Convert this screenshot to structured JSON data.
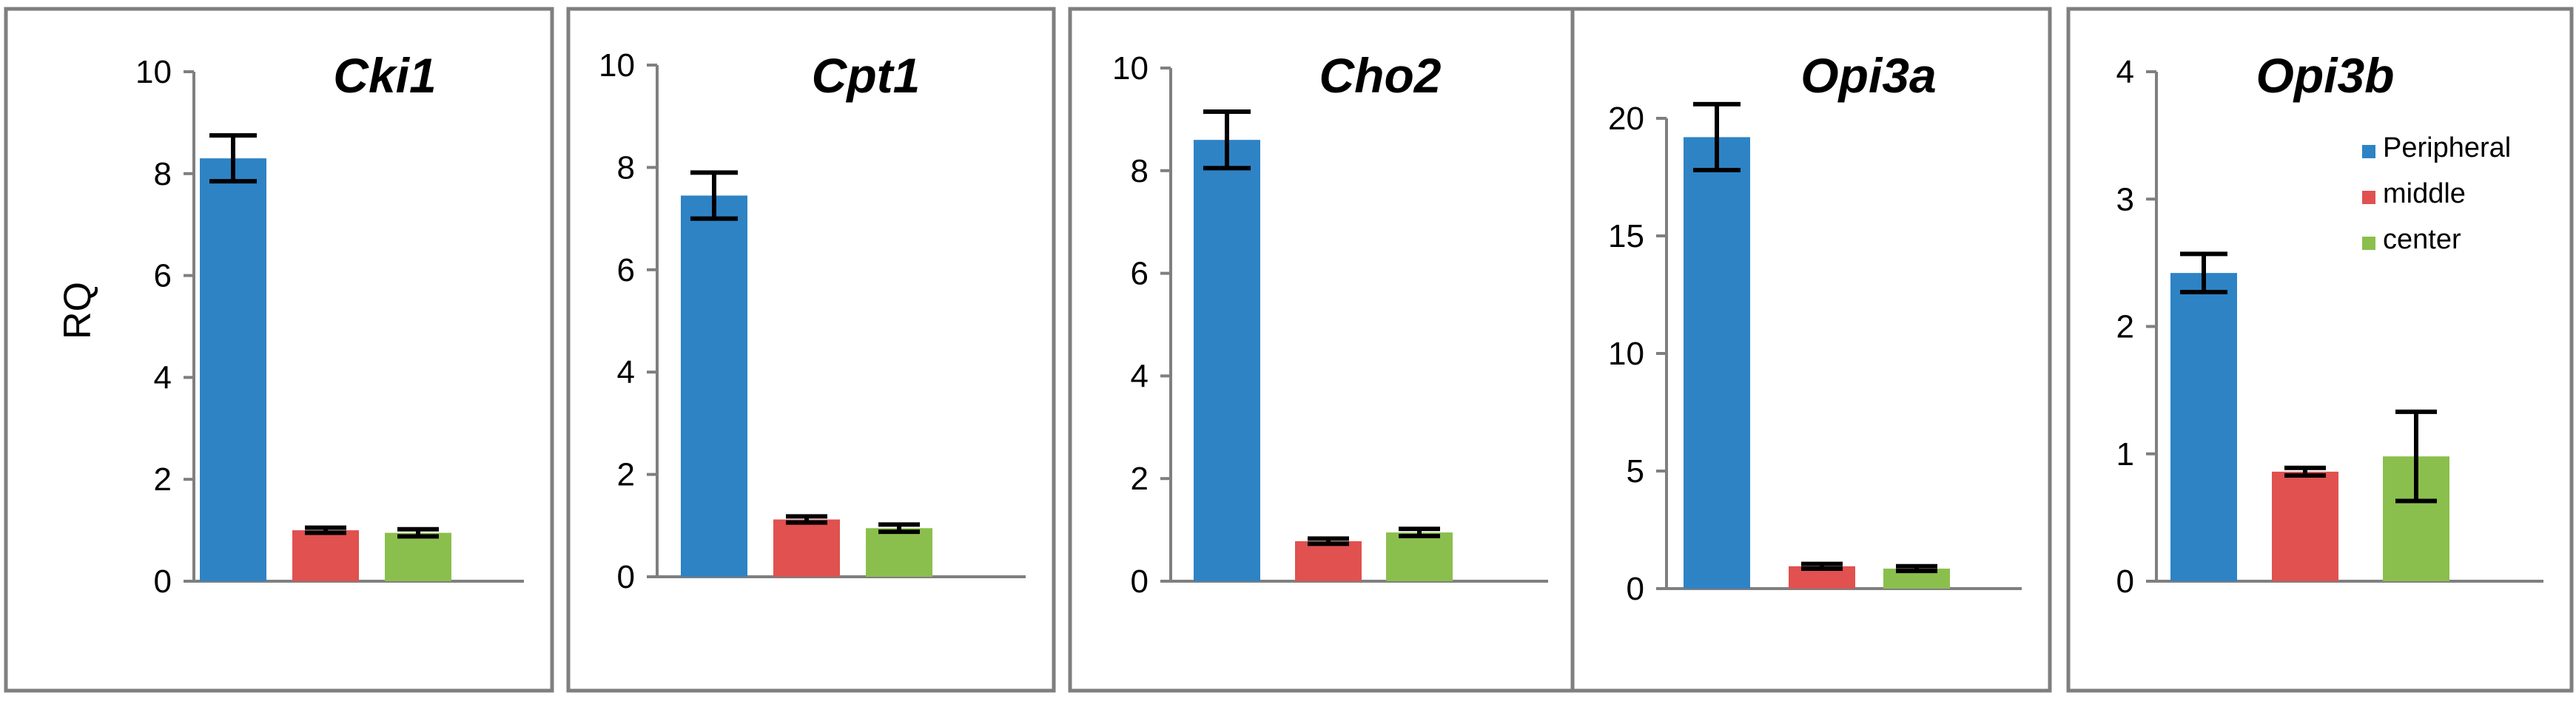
{
  "chart_data": [
    {
      "type": "bar",
      "title": "Cki1",
      "ylabel": "RQ",
      "ylim": [
        0,
        10
      ],
      "yticks": [
        0,
        2,
        4,
        6,
        8,
        10
      ],
      "categories": [
        "Peripheral",
        "middle",
        "center"
      ],
      "values": [
        8.3,
        1.0,
        0.95
      ],
      "errors": [
        0.45,
        0.05,
        0.07
      ]
    },
    {
      "type": "bar",
      "title": "Cpt1",
      "ylabel": "",
      "ylim": [
        0,
        10
      ],
      "yticks": [
        0,
        2,
        4,
        6,
        8,
        10
      ],
      "categories": [
        "Peripheral",
        "middle",
        "center"
      ],
      "values": [
        7.45,
        1.12,
        0.95
      ],
      "errors": [
        0.45,
        0.06,
        0.07
      ]
    },
    {
      "type": "bar",
      "title": "Cho2",
      "ylabel": "",
      "ylim": [
        0,
        10
      ],
      "yticks": [
        0,
        2,
        4,
        6,
        8,
        10
      ],
      "categories": [
        "Peripheral",
        "middle",
        "center"
      ],
      "values": [
        8.6,
        0.78,
        0.95
      ],
      "errors": [
        0.55,
        0.05,
        0.07
      ]
    },
    {
      "type": "bar",
      "title": "Opi3a",
      "ylabel": "",
      "ylim": [
        0,
        22
      ],
      "yticks": [
        0,
        5,
        10,
        15,
        20
      ],
      "categories": [
        "Peripheral",
        "middle",
        "center"
      ],
      "values": [
        19.2,
        0.95,
        0.85
      ],
      "errors": [
        1.4,
        0.1,
        0.1
      ]
    },
    {
      "type": "bar",
      "title": "Opi3b",
      "ylabel": "",
      "ylim": [
        0,
        4
      ],
      "yticks": [
        0,
        1,
        2,
        3,
        4
      ],
      "categories": [
        "Peripheral",
        "middle",
        "center"
      ],
      "values": [
        2.42,
        0.86,
        0.98
      ],
      "errors": [
        0.15,
        0.03,
        0.35
      ]
    }
  ],
  "legend": {
    "position": "top-right",
    "entries": [
      {
        "label": "Peripheral",
        "color": "#2e83c5"
      },
      {
        "label": "middle",
        "color": "#e0514f"
      },
      {
        "label": "center",
        "color": "#8bbf4d"
      }
    ]
  },
  "colors": {
    "series": [
      "#2e83c5",
      "#e0514f",
      "#8bbf4d"
    ],
    "axis": "#7f7f7f",
    "frame": "#7f7f7f"
  }
}
